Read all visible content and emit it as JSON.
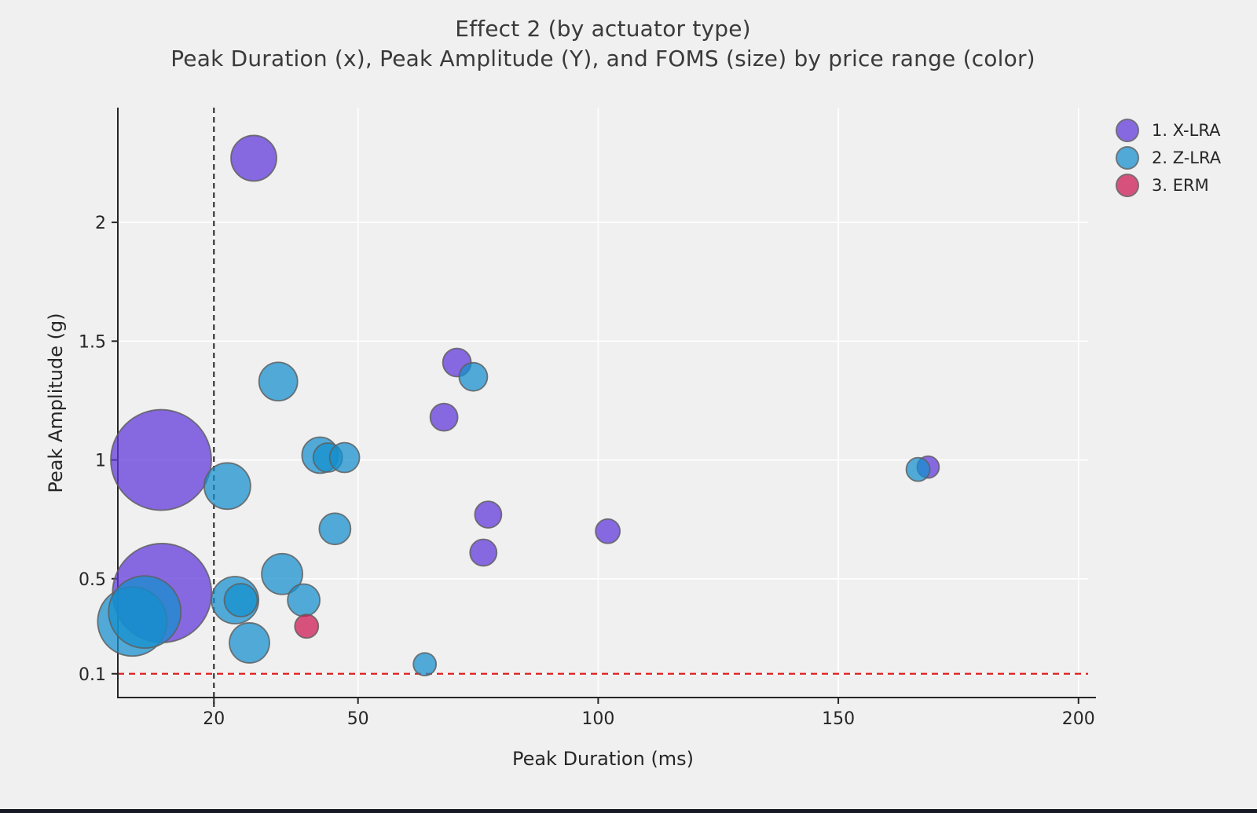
{
  "title": "Effect 2 (by actuator type)",
  "subtitle": "Peak Duration (x), Peak Amplitude (Y), and FOMS (size) by price range (color)",
  "xlabel": "Peak Duration (ms)",
  "ylabel": "Peak Amplitude (g)",
  "legend": [
    {
      "label": "1. X-LRA",
      "color": "#5F35DA"
    },
    {
      "label": "2. Z-LRA",
      "color": "#148ECD"
    },
    {
      "label": "3. ERM",
      "color": "#CD1652"
    }
  ],
  "colors": {
    "background": "#f0f0f0",
    "gridline": "#ffffff",
    "spine": "#262626",
    "vline": "#222222",
    "hline": "#e02020",
    "marker_edge": "#5f5f5f",
    "marker_opacity": 0.73
  },
  "chart_data": {
    "type": "scatter",
    "title": "Effect 2 (by actuator type)",
    "subtitle": "Peak Duration (x), Peak Amplitude (Y), and FOMS (size) by price range (color)",
    "xlabel": "Peak Duration (ms)",
    "ylabel": "Peak Amplitude (g)",
    "xlim": [
      0,
      202
    ],
    "ylim": [
      0,
      2.483
    ],
    "x_ticks": [
      20,
      50,
      100,
      150,
      200
    ],
    "y_ticks": [
      2,
      1.5,
      1,
      0.5,
      0.1
    ],
    "grid": true,
    "legend_position": "upper-right",
    "size_encoding": "FOMS (marker radius px)",
    "annotations": {
      "vline": {
        "x": 20,
        "style": "dashed",
        "color": "#222222"
      },
      "hline": {
        "y": 0.1,
        "style": "dashed",
        "color": "#e02020"
      }
    },
    "series": [
      {
        "name": "1. X-LRA",
        "color": "#5F35DA",
        "points": [
          {
            "x": 9.0,
            "y": 1.0,
            "r": 64
          },
          {
            "x": 9.2,
            "y": 0.44,
            "r": 63
          },
          {
            "x": 28.3,
            "y": 2.27,
            "r": 29
          },
          {
            "x": 67.9,
            "y": 1.18,
            "r": 17.5
          },
          {
            "x": 70.6,
            "y": 1.41,
            "r": 18
          },
          {
            "x": 76.1,
            "y": 0.61,
            "r": 17
          },
          {
            "x": 77.1,
            "y": 0.77,
            "r": 17
          },
          {
            "x": 102.0,
            "y": 0.7,
            "r": 15.5
          },
          {
            "x": 168.7,
            "y": 0.97,
            "r": 14
          }
        ]
      },
      {
        "name": "2. Z-LRA",
        "color": "#148ECD",
        "points": [
          {
            "x": 3.0,
            "y": 0.32,
            "r": 44
          },
          {
            "x": 5.6,
            "y": 0.36,
            "r": 46
          },
          {
            "x": 24.4,
            "y": 0.41,
            "r": 30
          },
          {
            "x": 25.6,
            "y": 0.41,
            "r": 21
          },
          {
            "x": 22.8,
            "y": 0.89,
            "r": 29.5
          },
          {
            "x": 27.4,
            "y": 0.23,
            "r": 25.5
          },
          {
            "x": 33.4,
            "y": 1.33,
            "r": 24.5
          },
          {
            "x": 34.2,
            "y": 0.52,
            "r": 26
          },
          {
            "x": 38.7,
            "y": 0.41,
            "r": 20.5
          },
          {
            "x": 42.1,
            "y": 1.02,
            "r": 23
          },
          {
            "x": 43.7,
            "y": 1.01,
            "r": 18.5
          },
          {
            "x": 47.2,
            "y": 1.01,
            "r": 19
          },
          {
            "x": 45.2,
            "y": 0.71,
            "r": 20
          },
          {
            "x": 63.9,
            "y": 0.14,
            "r": 14.5
          },
          {
            "x": 74.0,
            "y": 1.35,
            "r": 18
          },
          {
            "x": 166.6,
            "y": 0.96,
            "r": 15
          }
        ]
      },
      {
        "name": "3. ERM",
        "color": "#CD1652",
        "points": [
          {
            "x": 39.3,
            "y": 0.3,
            "r": 15
          }
        ]
      }
    ]
  }
}
